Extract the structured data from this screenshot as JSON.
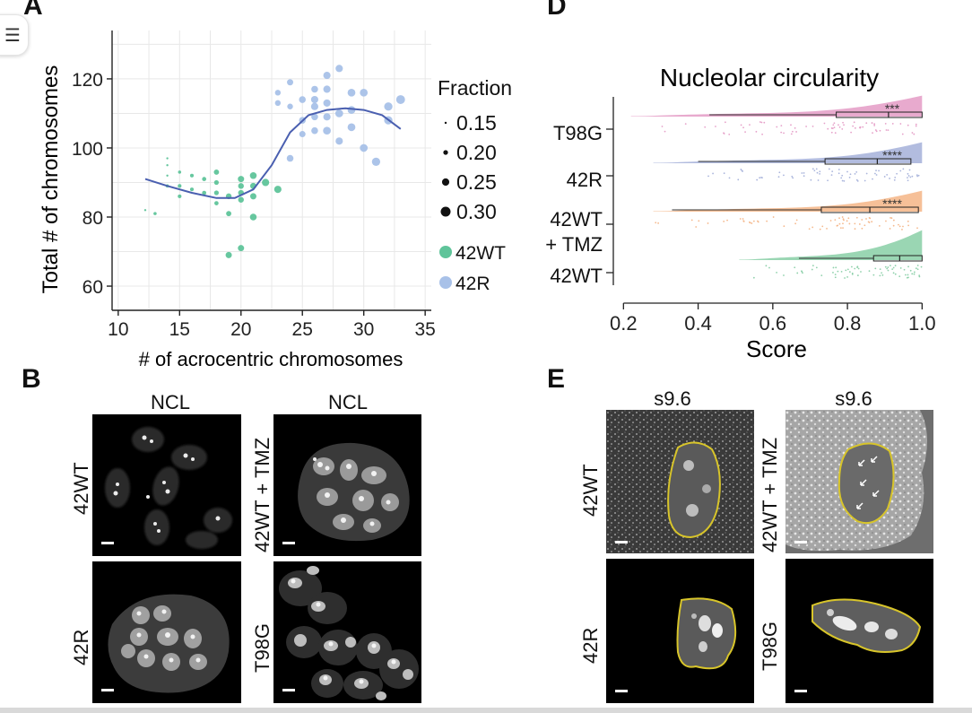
{
  "panels": {
    "a": "A",
    "b": "B",
    "d": "D",
    "e": "E"
  },
  "chart_data": [
    {
      "type": "scatter",
      "title": "",
      "xlabel": "# of acrocentric chromosomes",
      "ylabel": "Total # of chromosomes",
      "xlim": [
        9.5,
        35.5
      ],
      "ylim": [
        53,
        134
      ],
      "xticks": [
        "10",
        "15",
        "20",
        "25",
        "30",
        "35"
      ],
      "yticks": [
        "60",
        "80",
        "100",
        "120"
      ],
      "grid": true,
      "legend_placement": "right",
      "size_legend": {
        "title": "Fraction",
        "entries": [
          "0.15",
          "0.20",
          "0.25",
          "0.30"
        ]
      },
      "color_legend": [
        {
          "label": "42WT",
          "color": "#5fc49a"
        },
        {
          "label": "42R",
          "color": "#a8c1e8"
        }
      ],
      "series": [
        {
          "name": "42WT",
          "color": "#5fc49a",
          "points": [
            [
              12.2,
              82,
              0.15
            ],
            [
              13,
              81,
              0.17
            ],
            [
              14,
              89,
              0.17
            ],
            [
              14,
              92,
              0.15
            ],
            [
              14,
              95,
              0.15
            ],
            [
              14,
              97,
              0.15
            ],
            [
              15,
              93,
              0.17
            ],
            [
              15,
              89,
              0.18
            ],
            [
              15,
              86,
              0.18
            ],
            [
              16,
              92,
              0.18
            ],
            [
              16,
              88,
              0.18
            ],
            [
              17,
              91,
              0.19
            ],
            [
              17,
              87,
              0.19
            ],
            [
              18,
              93,
              0.21
            ],
            [
              18,
              90,
              0.2
            ],
            [
              18,
              87,
              0.2
            ],
            [
              18,
              84,
              0.19
            ],
            [
              19,
              86,
              0.22
            ],
            [
              19,
              69,
              0.23
            ],
            [
              19,
              81,
              0.21
            ],
            [
              20,
              71,
              0.23
            ],
            [
              20,
              91,
              0.23
            ],
            [
              20,
              89,
              0.22
            ],
            [
              20,
              87,
              0.22
            ],
            [
              20,
              85,
              0.22
            ],
            [
              21,
              92,
              0.24
            ],
            [
              21,
              89,
              0.23
            ],
            [
              21,
              86,
              0.23
            ],
            [
              21,
              80,
              0.24
            ],
            [
              22,
              90,
              0.25
            ],
            [
              23,
              88,
              0.25
            ]
          ]
        },
        {
          "name": "42R",
          "color": "#a8c1e8",
          "points": [
            [
              23,
              116,
              0.22
            ],
            [
              23,
              113,
              0.22
            ],
            [
              24,
              119,
              0.23
            ],
            [
              24,
              112,
              0.22
            ],
            [
              24,
              97,
              0.24
            ],
            [
              25,
              114,
              0.24
            ],
            [
              25,
              108,
              0.24
            ],
            [
              25,
              104,
              0.23
            ],
            [
              26,
              117,
              0.24
            ],
            [
              26,
              114,
              0.25
            ],
            [
              26,
              112,
              0.25
            ],
            [
              26,
              109,
              0.24
            ],
            [
              26,
              105,
              0.24
            ],
            [
              27,
              121,
              0.25
            ],
            [
              27,
              117,
              0.25
            ],
            [
              27,
              113,
              0.25
            ],
            [
              27,
              109,
              0.25
            ],
            [
              27,
              105,
              0.26
            ],
            [
              28,
              123,
              0.25
            ],
            [
              28,
              110,
              0.26
            ],
            [
              28,
              102,
              0.25
            ],
            [
              29,
              116,
              0.26
            ],
            [
              29,
              111,
              0.26
            ],
            [
              29,
              106,
              0.26
            ],
            [
              30,
              116,
              0.26
            ],
            [
              30,
              100,
              0.26
            ],
            [
              31,
              96,
              0.27
            ],
            [
              32,
              112,
              0.27
            ],
            [
              32,
              108,
              0.27
            ],
            [
              33,
              114,
              0.28
            ]
          ]
        }
      ],
      "trend_line": [
        [
          12.2,
          91
        ],
        [
          14,
          89
        ],
        [
          16,
          87
        ],
        [
          18,
          85.5
        ],
        [
          19.5,
          85.5
        ],
        [
          21,
          88
        ],
        [
          22.5,
          95
        ],
        [
          24,
          104.5
        ],
        [
          25.5,
          109.5
        ],
        [
          27,
          111
        ],
        [
          28.5,
          111.5
        ],
        [
          30,
          111
        ],
        [
          31.5,
          109.5
        ],
        [
          33,
          105.5
        ]
      ]
    },
    {
      "type": "raincloud",
      "title": "Nucleolar circularity",
      "xlabel": "Score",
      "ylabel": "",
      "xlim": [
        0.18,
        1.04
      ],
      "xticks": [
        "0.2",
        "0.4",
        "0.6",
        "0.8",
        "1.0"
      ],
      "categories": [
        "T98G",
        "42R",
        "42WT\n+ TMZ",
        "42WT"
      ],
      "groups": [
        {
          "label": "T98G",
          "color": "#e6a1c9",
          "min": 0.22,
          "q1": 0.77,
          "median": 0.91,
          "q3": 1.0,
          "max": 1.0,
          "whisker_low": 0.43,
          "significance": "***"
        },
        {
          "label": "42R",
          "color": "#aab5dc",
          "min": 0.28,
          "q1": 0.74,
          "median": 0.88,
          "q3": 0.97,
          "max": 1.0,
          "whisker_low": 0.4,
          "significance": "****"
        },
        {
          "label": "42WT\n+ TMZ",
          "color": "#f5b98d",
          "min": 0.28,
          "q1": 0.73,
          "median": 0.86,
          "q3": 0.99,
          "max": 1.0,
          "whisker_low": 0.33,
          "significance": "****"
        },
        {
          "label": "42WT",
          "color": "#8fd1ab",
          "min": 0.51,
          "q1": 0.87,
          "median": 0.94,
          "q3": 1.0,
          "max": 1.0,
          "whisker_low": 0.67,
          "significance": ""
        }
      ]
    }
  ],
  "panel_b": {
    "titles": [
      "NCL",
      "NCL"
    ],
    "images": [
      {
        "label": "42WT"
      },
      {
        "label": "42WT + TMZ"
      },
      {
        "label": "42R"
      },
      {
        "label": "T98G"
      }
    ]
  },
  "panel_e": {
    "titles": [
      "s9.6",
      "s9.6"
    ],
    "images": [
      {
        "label": "42WT"
      },
      {
        "label": "42WT + TMZ"
      },
      {
        "label": "42R"
      },
      {
        "label": "T98G"
      }
    ]
  },
  "colors": {
    "outline": "#d8c52a",
    "trend": "#4a5fb0",
    "grid": "#e8e8e8"
  }
}
